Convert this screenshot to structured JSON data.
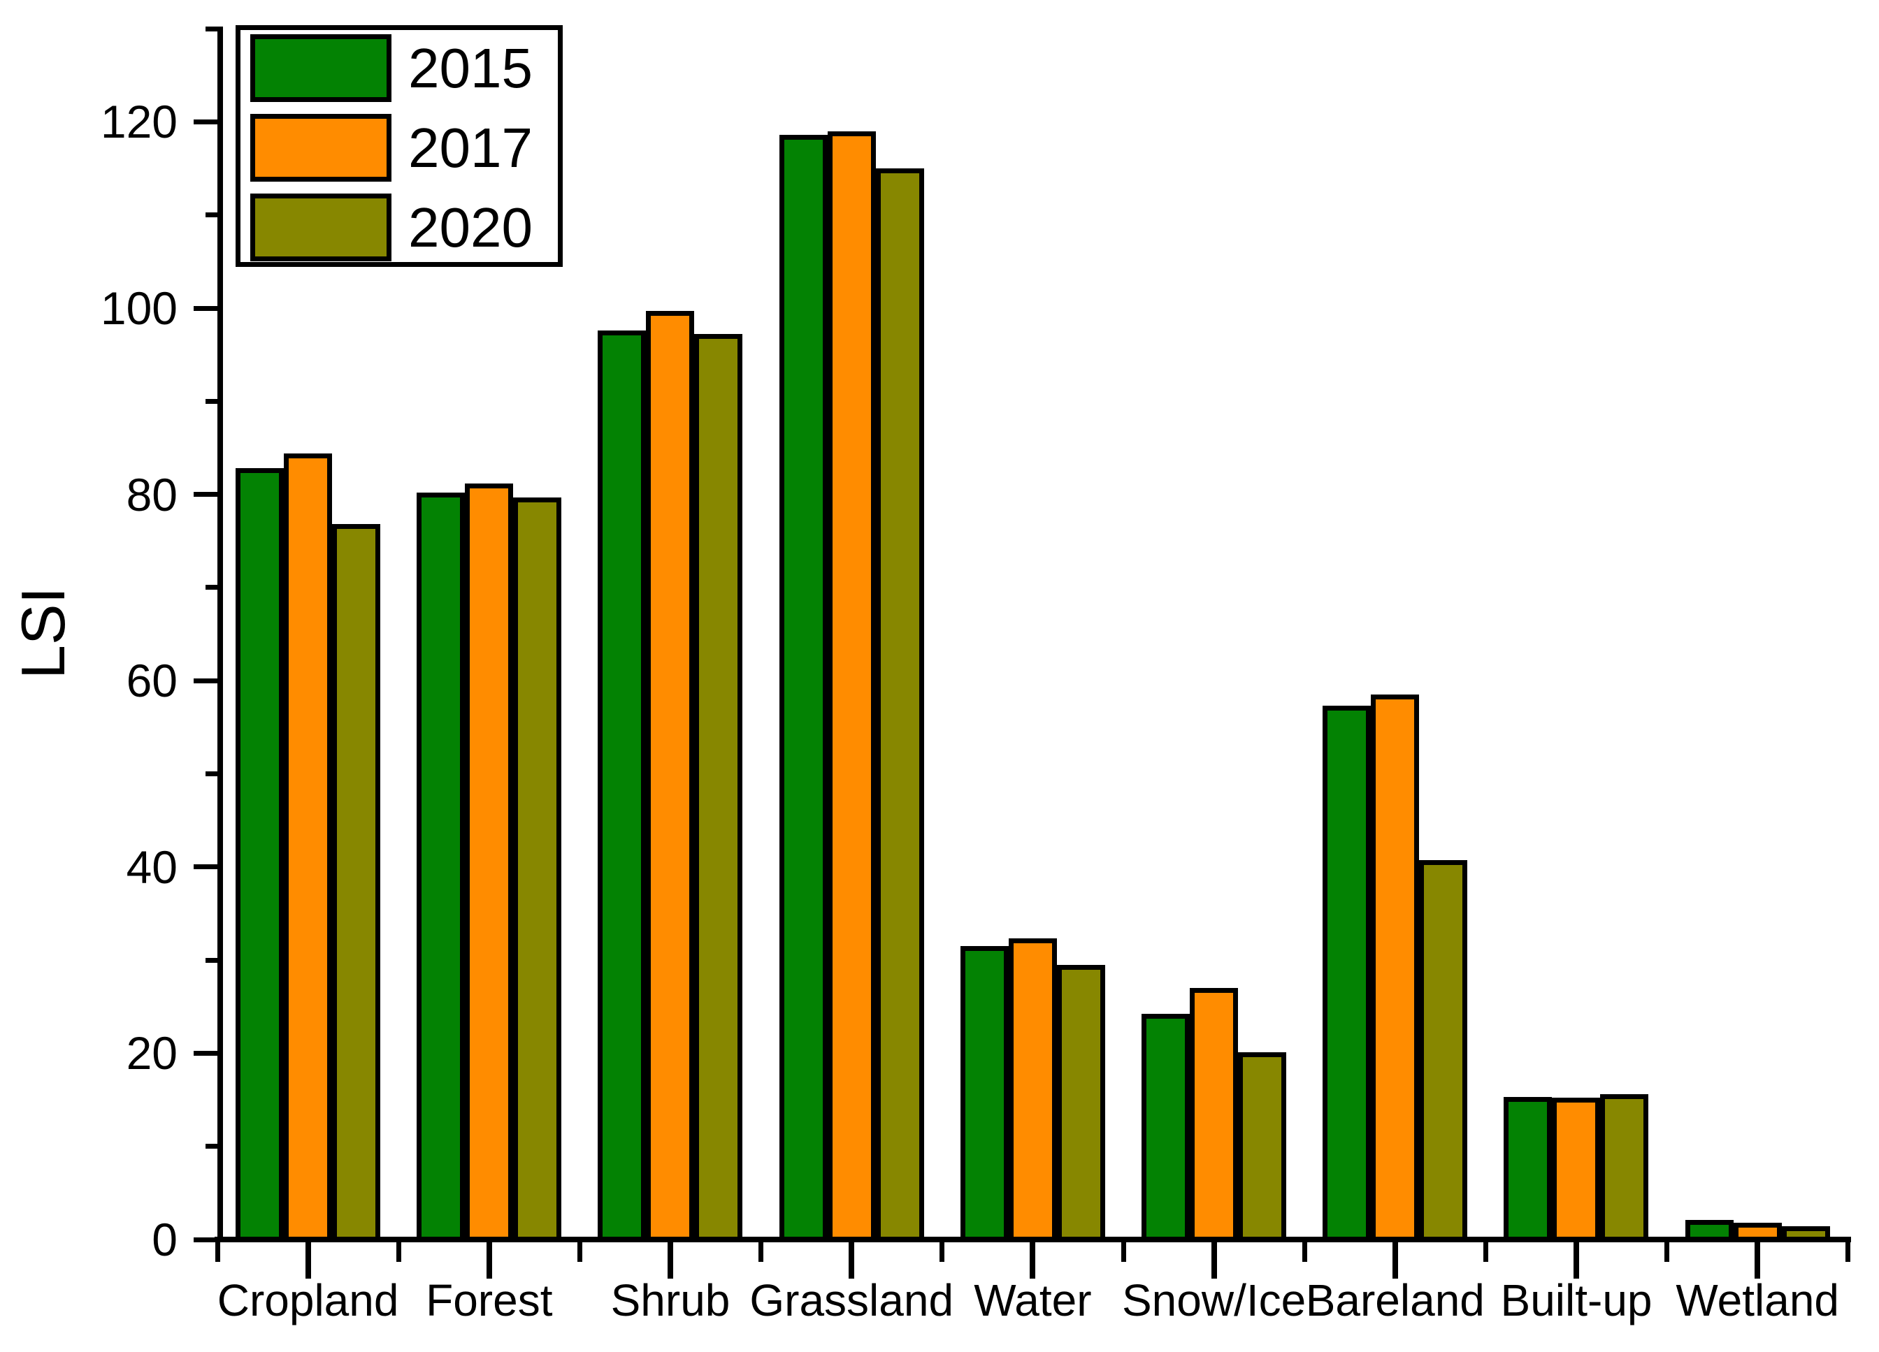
{
  "chart_data": {
    "type": "bar",
    "title": "",
    "ylabel": "LSI",
    "xlabel": "",
    "categories": [
      "Cropland",
      "Forest",
      "Shrub",
      "Grassland",
      "Water",
      "Snow/Ice",
      "Bareland",
      "Built-up",
      "Wetland"
    ],
    "series": [
      {
        "name": "2015",
        "color": "#038203",
        "values": [
          82.8,
          80.2,
          97.6,
          118.6,
          31.5,
          24.2,
          57.3,
          15.3,
          2.1
        ]
      },
      {
        "name": "2017",
        "color": "#FF8C00",
        "values": [
          84.4,
          81.2,
          99.7,
          119.0,
          32.3,
          27.0,
          58.5,
          15.2,
          1.8
        ]
      },
      {
        "name": "2020",
        "color": "#878700",
        "values": [
          76.8,
          79.7,
          97.2,
          115.0,
          29.5,
          20.1,
          40.7,
          15.6,
          1.4
        ]
      }
    ],
    "ylim": [
      0,
      130
    ],
    "yticks_major": [
      0,
      20,
      40,
      60,
      80,
      100,
      120
    ],
    "ytick_minor_step": 10,
    "grid": false,
    "legend_position": "top-left",
    "axis_color": "#000000",
    "bar_border_color": "#000000",
    "background_color": "#FFFFFF"
  }
}
